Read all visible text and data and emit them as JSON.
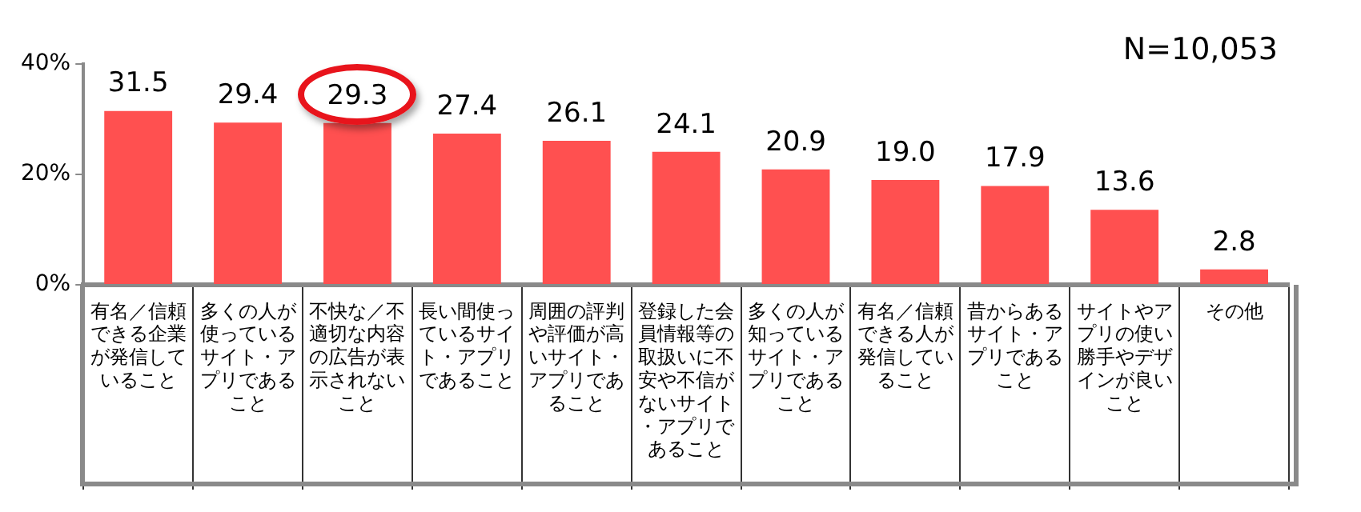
{
  "chart_data": {
    "type": "bar",
    "categories": [
      "有名／信頼できる企業が発信していること",
      "多くの人が使っているサイト・アプリであること",
      "不快な／不適切な内容の広告が表示されないこと",
      "長い間使っているサイト・アプリであること",
      "周囲の評判や評価が高いサイト・アプリであること",
      "登録した会員情報等の取扱いに不安や不信がないサイト・アプリであること",
      "多くの人が知っているサイト・アプリであること",
      "有名／信頼できる人が発信していること",
      "昔からあるサイト・アプリであること",
      "サイトやアプリの使い勝手やデザインが良いこと",
      "その他"
    ],
    "values": [
      31.5,
      29.4,
      29.3,
      27.4,
      26.1,
      24.1,
      20.9,
      19.0,
      17.9,
      13.6,
      2.8
    ],
    "color": "#ff5050",
    "ylim": [
      0,
      40
    ],
    "yticks": [
      {
        "value": 0,
        "label": "0%"
      },
      {
        "value": 20,
        "label": "20%"
      },
      {
        "value": 40,
        "label": "40%"
      }
    ],
    "value_labels": [
      "31.5",
      "29.4",
      "29.3",
      "27.4",
      "26.1",
      "24.1",
      "20.9",
      "19.0",
      "17.9",
      "13.6",
      "2.8"
    ],
    "annotations": [
      "N=10,053"
    ],
    "grid": false,
    "legend": false
  }
}
